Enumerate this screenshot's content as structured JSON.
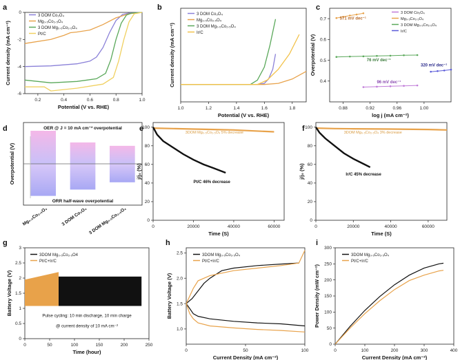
{
  "colors": {
    "c3dom_co": "#8a80d8",
    "mg_co": "#e8a24a",
    "c3dom_mg": "#5aa85a",
    "ptc": "#f0d060",
    "irc": "#f2c24a",
    "black": "#111111"
  },
  "chart_data": [
    {
      "panel": "a",
      "type": "line",
      "xlabel": "Potential (V vs. RHE)",
      "ylabel": "Current density (mA cm⁻²)",
      "xlim": [
        0.1,
        1.0
      ],
      "ylim": [
        -6,
        0
      ],
      "xticks": [
        "0.2",
        "0.4",
        "0.6",
        "0.8",
        "1.0"
      ],
      "yticks": [
        "0",
        "-2",
        "-4",
        "-6"
      ],
      "legend": [
        "3 DOM Co₃O₄",
        "Mg₀.₅Co₂.₅O₄",
        "3 DOM Mg₀.₅Co₂.₅O₄",
        "Pt/C"
      ],
      "series": [
        {
          "name": "3 DOM Co₃O₄",
          "x": [
            0.1,
            0.3,
            0.5,
            0.6,
            0.65,
            0.7,
            0.75,
            0.8,
            0.85,
            0.9,
            1.0
          ],
          "y": [
            -4.0,
            -3.95,
            -3.8,
            -3.6,
            -3.3,
            -2.6,
            -1.5,
            -0.6,
            -0.15,
            -0.05,
            0
          ]
        },
        {
          "name": "Mg₀.₅Co₂.₅O₄",
          "x": [
            0.1,
            0.3,
            0.4,
            0.45,
            0.5,
            0.6,
            0.7,
            0.8,
            0.9,
            1.0
          ],
          "y": [
            -2.3,
            -2.0,
            -1.7,
            -1.5,
            -1.45,
            -1.3,
            -0.9,
            -0.4,
            -0.1,
            0
          ]
        },
        {
          "name": "3 DOM Mg₀.₅Co₂.₅O₄",
          "x": [
            0.1,
            0.3,
            0.5,
            0.65,
            0.72,
            0.76,
            0.8,
            0.84,
            0.88,
            0.92,
            1.0
          ],
          "y": [
            -5.0,
            -5.2,
            -5.1,
            -4.9,
            -4.5,
            -3.5,
            -2.0,
            -0.8,
            -0.2,
            -0.05,
            0
          ]
        },
        {
          "name": "Pt/C",
          "x": [
            0.1,
            0.25,
            0.3,
            0.5,
            0.7,
            0.78,
            0.82,
            0.86,
            0.9,
            0.94,
            1.0
          ],
          "y": [
            -5.5,
            -5.5,
            -5.8,
            -5.6,
            -5.3,
            -4.8,
            -3.6,
            -2.0,
            -0.7,
            -0.1,
            0
          ]
        }
      ]
    },
    {
      "panel": "b",
      "type": "line",
      "xlabel": "Potential (V vs. RHE)",
      "ylabel": "Current density (mA cm⁻²)",
      "xlim": [
        1.0,
        1.9
      ],
      "xticks": [
        "1.0",
        "1.2",
        "1.4",
        "1.6",
        "1.8"
      ],
      "legend": [
        "3 DOM Co₃O₄",
        "Mg₀.₅Co₂.₅O₄",
        "3 DOM Mg₀.₅Co₂.₅O₄",
        "Ir/C"
      ],
      "series": [
        {
          "name": "3 DOM Co₃O₄",
          "x": [
            1.0,
            1.55,
            1.6,
            1.63,
            1.66,
            1.68
          ],
          "y": [
            0,
            0,
            0.5,
            2.5,
            7,
            14
          ]
        },
        {
          "name": "Mg₀.₅Co₂.₅O₄",
          "x": [
            1.0,
            1.6,
            1.7,
            1.8,
            1.9
          ],
          "y": [
            0,
            0,
            0.5,
            2.5,
            6
          ]
        },
        {
          "name": "3 DOM Mg₀.₅Co₂.₅O₄",
          "x": [
            1.0,
            1.5,
            1.55,
            1.6,
            1.64,
            1.68
          ],
          "y": [
            0,
            0,
            2,
            8,
            18,
            30
          ]
        },
        {
          "name": "Ir/C",
          "x": [
            1.0,
            1.55,
            1.62,
            1.7,
            1.78,
            1.85
          ],
          "y": [
            0,
            0,
            2,
            7,
            14,
            23
          ]
        }
      ]
    },
    {
      "panel": "c",
      "type": "scatter",
      "xlabel": "log j (mA cm⁻²)",
      "ylabel": "Overpotential (V)",
      "xlim": [
        0.86,
        1.04
      ],
      "ylim": [
        0.3,
        0.75
      ],
      "xticks": [
        "0.88",
        "0.92",
        "0.96",
        "1.00"
      ],
      "yticks": [
        "0.4",
        "0.5",
        "0.6",
        "0.7"
      ],
      "legend": [
        "3 DOM Co₃O₄",
        "Mg₀.₅Co₂.₅O₄",
        "3 DOM Mg₀.₅Co₂.₅O₄",
        "Ir/C"
      ],
      "annotations": [
        "571 mV dec⁻¹",
        "76 mV dec⁻¹",
        "96 mV dec⁻¹",
        "320 mV dec⁻¹"
      ],
      "series": [
        {
          "name": "3 DOM Co₃O₄",
          "x": [
            0.91,
            0.93,
            0.95,
            0.97,
            0.99
          ],
          "y": [
            0.371,
            0.373,
            0.375,
            0.377,
            0.379
          ]
        },
        {
          "name": "Mg₀.₅Co₂.₅O₄",
          "x": [
            0.87,
            0.88,
            0.89,
            0.9,
            0.91
          ],
          "y": [
            0.703,
            0.709,
            0.715,
            0.72,
            0.726
          ]
        },
        {
          "name": "3 DOM Mg₀.₅Co₂.₅O₄",
          "x": [
            0.87,
            0.89,
            0.91,
            0.93,
            0.95,
            0.97,
            0.99
          ],
          "y": [
            0.516,
            0.518,
            0.519,
            0.521,
            0.522,
            0.524,
            0.525
          ]
        },
        {
          "name": "Ir/C",
          "x": [
            1.01,
            1.02,
            1.03,
            1.04
          ],
          "y": [
            0.445,
            0.448,
            0.451,
            0.455
          ]
        }
      ]
    },
    {
      "panel": "d",
      "type": "bar",
      "ylabel": "Overpotential (V)",
      "title_top": "OER @ J = 10 mA cm⁻² overpotential",
      "title_bottom": "ORR half-wave overpotential",
      "categories": [
        "Mg₀.₅Co₂.₅O₄",
        "3 DOM Co₃O₄",
        "3 DOM Mg₀.₅Co₂.₅O₄"
      ],
      "oer_values": [
        0.68,
        0.44,
        0.37
      ],
      "orr_values": [
        -0.66,
        -0.53,
        -0.38
      ]
    },
    {
      "panel": "e",
      "type": "line",
      "xlabel": "Time (S)",
      "ylabel": "j/j₀ (%)",
      "xlim": [
        0,
        60000
      ],
      "ylim": [
        0,
        100
      ],
      "xticks": [
        "0",
        "20000",
        "40000",
        "60000"
      ],
      "yticks": [
        "0",
        "20",
        "40",
        "60",
        "80",
        "100"
      ],
      "annotations": [
        "3DOM Mg₀.₅Co₂.₅O₄ 5% decrease",
        "Pt/C 46% decrease"
      ],
      "series": [
        {
          "name": "3DOM Mg₀.₅Co₂.₅O₄",
          "x": [
            0,
            10000,
            20000,
            30000,
            40000,
            50000,
            60000
          ],
          "y": [
            99,
            98.5,
            98,
            97.5,
            97,
            96,
            95
          ]
        },
        {
          "name": "Pt/C",
          "x": [
            0,
            2000,
            5000,
            10000,
            15000,
            20000,
            25000,
            30000,
            36000
          ],
          "y": [
            100,
            92,
            85,
            78,
            71,
            65,
            60,
            56,
            51
          ]
        }
      ]
    },
    {
      "panel": "f",
      "type": "line",
      "xlabel": "Time (S)",
      "ylabel": "j/j₀ (%)",
      "xlim": [
        0,
        70000
      ],
      "ylim": [
        0,
        100
      ],
      "xticks": [
        "0",
        "20000",
        "40000",
        "60000"
      ],
      "yticks": [
        "0",
        "20",
        "40",
        "60",
        "80",
        "100"
      ],
      "annotations": [
        "3DOM Mg₀.₅Co₂.₅O₄ 3% decrease",
        "Ir/C 45% decrease"
      ],
      "series": [
        {
          "name": "3DOM Mg₀.₅Co₂.₅O₄",
          "x": [
            0,
            10000,
            20000,
            40000,
            60000,
            70000
          ],
          "y": [
            99,
            98.5,
            98.3,
            98,
            97.5,
            97
          ]
        },
        {
          "name": "Ir/C",
          "x": [
            0,
            2000,
            5000,
            10000,
            15000,
            20000,
            25000,
            29000
          ],
          "y": [
            100,
            94,
            88,
            80,
            72,
            66,
            61,
            57
          ]
        }
      ]
    },
    {
      "panel": "g",
      "type": "area",
      "xlabel": "Time (hour)",
      "ylabel": "Battery Voltage (V)",
      "xlim": [
        0,
        250
      ],
      "ylim": [
        0,
        3
      ],
      "xticks": [
        "0",
        "50",
        "100",
        "150",
        "200",
        "250"
      ],
      "yticks": [
        "0",
        "0.5",
        "1",
        "1.5",
        "2",
        "2.5",
        "3"
      ],
      "legend": [
        "3DOM Mg₀.₅Co₂.₅O4",
        "Pt/C+Ir/C"
      ],
      "annotations": [
        "Pulse cycling: 10 min discharge, 10 min charge",
        "@ current density of 10 mA cm⁻²"
      ],
      "series": [
        {
          "name": "3DOM Mg₀.₅Co₂.₅O4",
          "x_start": 68,
          "x_end": 235,
          "v_low": 1.08,
          "v_high": 2.05
        },
        {
          "name": "Pt/C+Ir/C",
          "x_start": 0,
          "x_end": 68,
          "v_low": 1.08,
          "v_high_start": 1.95,
          "v_high_end": 2.2
        }
      ]
    },
    {
      "panel": "h",
      "type": "line",
      "xlabel": "Current Density (mA cm⁻²)",
      "ylabel": "Battery Voltage (V)",
      "xlim": [
        0,
        100
      ],
      "ylim": [
        0.7,
        2.6
      ],
      "xticks": [
        "0",
        "50",
        "100"
      ],
      "yticks": [
        "1.0",
        "1.5",
        "2.0",
        "2.5"
      ],
      "legend": [
        "3DOM Mg₀.₅Co₂.₅O₄",
        "Pt/C+Ir/C"
      ],
      "series": [
        {
          "name": "3DOM Mg₀.₅Co₂.₅O₄ charge",
          "x": [
            0,
            5,
            10,
            15,
            20,
            30,
            40,
            60,
            80,
            95
          ],
          "y": [
            1.5,
            1.6,
            1.75,
            1.9,
            2.0,
            2.15,
            2.2,
            2.25,
            2.28,
            2.3
          ]
        },
        {
          "name": "3DOM Mg₀.₅Co₂.₅O₄ discharge",
          "x": [
            0,
            3,
            6,
            10,
            20,
            40,
            60,
            80,
            100
          ],
          "y": [
            1.5,
            1.4,
            1.3,
            1.25,
            1.2,
            1.15,
            1.12,
            1.1,
            1.06
          ]
        },
        {
          "name": "Pt/C+Ir/C charge",
          "x": [
            0,
            3,
            6,
            10,
            20,
            30,
            40,
            60,
            80,
            95,
            100
          ],
          "y": [
            1.5,
            1.65,
            1.8,
            1.95,
            2.05,
            2.1,
            2.15,
            2.2,
            2.25,
            2.3,
            2.55
          ]
        },
        {
          "name": "Pt/C+Ir/C discharge",
          "x": [
            0,
            3,
            6,
            10,
            20,
            40,
            60,
            80,
            100
          ],
          "y": [
            1.5,
            1.3,
            1.2,
            1.12,
            1.06,
            1.02,
            0.99,
            0.97,
            0.94
          ]
        }
      ]
    },
    {
      "panel": "i",
      "type": "line",
      "xlabel": "Current Density (mA cm⁻²)",
      "ylabel": "Power Density (mW cm⁻²)",
      "xlim": [
        0,
        400
      ],
      "ylim": [
        0,
        300
      ],
      "xticks": [
        "0",
        "100",
        "200",
        "300",
        "400"
      ],
      "yticks": [
        "0",
        "50",
        "100",
        "150",
        "200",
        "250",
        "300"
      ],
      "legend": [
        "3DOM Mg₀.₅Co₂.₅O₄",
        "Pt/C+Ir/C"
      ],
      "series": [
        {
          "name": "3DOM Mg₀.₅Co₂.₅O₄",
          "x": [
            0,
            50,
            100,
            150,
            200,
            250,
            300,
            350,
            365
          ],
          "y": [
            0,
            55,
            105,
            148,
            185,
            215,
            237,
            250,
            252
          ]
        },
        {
          "name": "Pt/C+Ir/C",
          "x": [
            0,
            50,
            100,
            150,
            200,
            250,
            300,
            350,
            365
          ],
          "y": [
            0,
            50,
            95,
            135,
            170,
            198,
            215,
            228,
            230
          ]
        }
      ]
    }
  ],
  "labels": {
    "a": "a",
    "b": "b",
    "c": "c",
    "d": "d",
    "e": "e",
    "f": "f",
    "g": "g",
    "h": "h",
    "i": "i"
  }
}
